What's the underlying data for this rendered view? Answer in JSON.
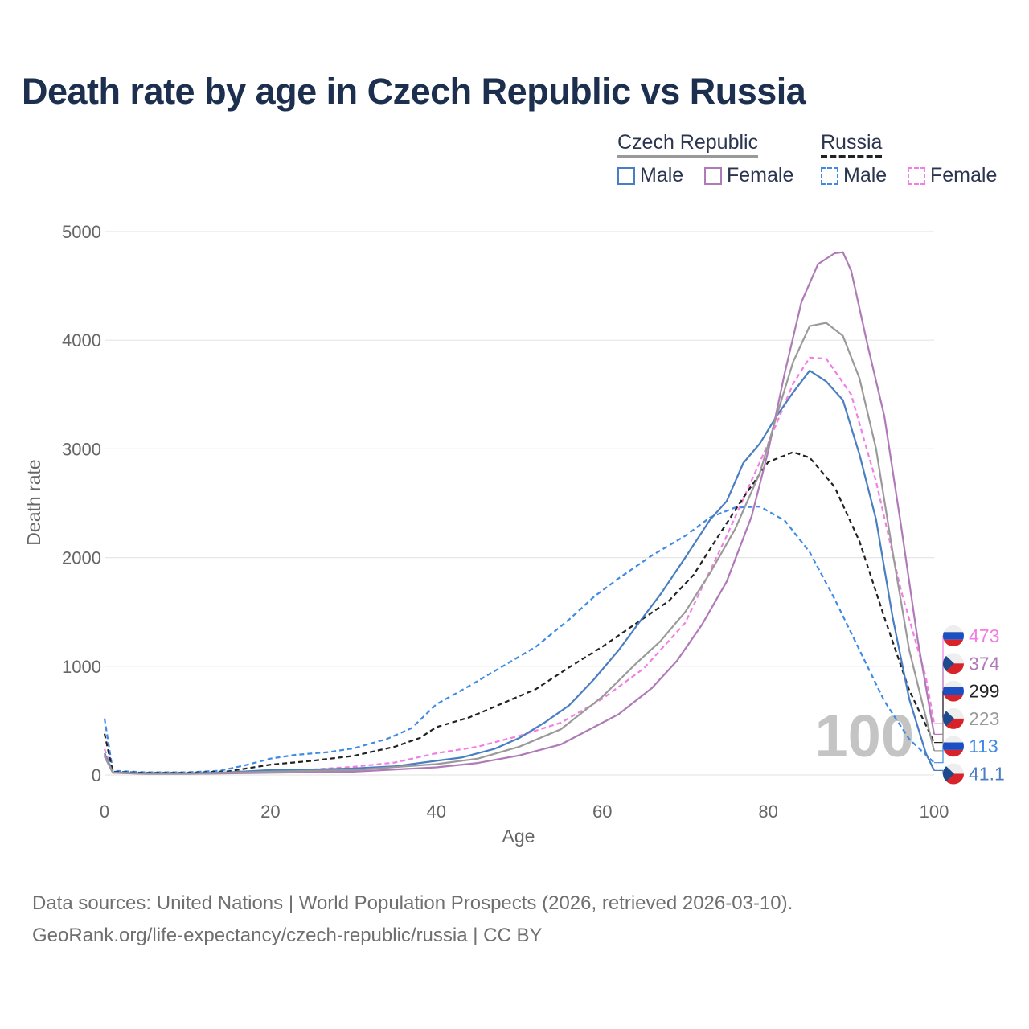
{
  "title": "Death rate by age in Czech Republic vs Russia",
  "legend": {
    "groups": [
      {
        "name": "Czech Republic",
        "line_color": "#999999",
        "line_style": "solid"
      },
      {
        "name": "Russia",
        "line_color": "#222222",
        "line_style": "dashed"
      }
    ],
    "items": [
      {
        "label": "Male",
        "color": "#4a7ec2",
        "style": "solid"
      },
      {
        "label": "Female",
        "color": "#b07ab8",
        "style": "solid"
      },
      {
        "label": "Male",
        "color": "#3f8ae6",
        "style": "dashed"
      },
      {
        "label": "Female",
        "color": "#f27ee4",
        "style": "dashed"
      }
    ]
  },
  "year_watermark": "100",
  "footer": {
    "line1": "Data sources: United Nations | World Population Prospects (2026, retrieved 2026-03-10).",
    "line2": "GeoRank.org/life-expectancy/czech-republic/russia | CC BY"
  },
  "chart_data": {
    "type": "line",
    "xlabel": "Age",
    "ylabel": "Death rate",
    "xlim": [
      0,
      100
    ],
    "ylim": [
      0,
      5000
    ],
    "xticks": [
      0,
      20,
      40,
      60,
      80,
      100
    ],
    "yticks": [
      0,
      1000,
      2000,
      3000,
      4000,
      5000
    ],
    "grid": true,
    "series": [
      {
        "name": "Russia Male",
        "country": "Russia",
        "sex": "Male",
        "color": "#3f8ae6",
        "dash": true,
        "end_label": "113",
        "end_flag": "russia",
        "points": [
          [
            0,
            520
          ],
          [
            1,
            40
          ],
          [
            5,
            25
          ],
          [
            10,
            25
          ],
          [
            14,
            40
          ],
          [
            17,
            90
          ],
          [
            20,
            150
          ],
          [
            23,
            185
          ],
          [
            27,
            210
          ],
          [
            30,
            245
          ],
          [
            34,
            330
          ],
          [
            37,
            430
          ],
          [
            40,
            650
          ],
          [
            44,
            820
          ],
          [
            48,
            1000
          ],
          [
            52,
            1180
          ],
          [
            56,
            1430
          ],
          [
            59,
            1640
          ],
          [
            62,
            1810
          ],
          [
            66,
            2020
          ],
          [
            70,
            2200
          ],
          [
            73,
            2370
          ],
          [
            76,
            2460
          ],
          [
            79,
            2470
          ],
          [
            82,
            2340
          ],
          [
            85,
            2050
          ],
          [
            88,
            1620
          ],
          [
            91,
            1150
          ],
          [
            94,
            680
          ],
          [
            97,
            330
          ],
          [
            100,
            113
          ]
        ]
      },
      {
        "name": "Russia Female",
        "country": "Russia",
        "sex": "Female",
        "color": "#f27ee4",
        "dash": true,
        "end_label": "473",
        "end_flag": "russia",
        "points": [
          [
            0,
            240
          ],
          [
            1,
            20
          ],
          [
            5,
            15
          ],
          [
            10,
            15
          ],
          [
            15,
            20
          ],
          [
            20,
            35
          ],
          [
            25,
            50
          ],
          [
            30,
            75
          ],
          [
            35,
            115
          ],
          [
            40,
            200
          ],
          [
            45,
            260
          ],
          [
            50,
            360
          ],
          [
            55,
            480
          ],
          [
            60,
            700
          ],
          [
            65,
            980
          ],
          [
            70,
            1400
          ],
          [
            75,
            2200
          ],
          [
            80,
            3050
          ],
          [
            83,
            3600
          ],
          [
            85,
            3840
          ],
          [
            87,
            3830
          ],
          [
            90,
            3500
          ],
          [
            93,
            2700
          ],
          [
            96,
            1700
          ],
          [
            99,
            900
          ],
          [
            100,
            473
          ]
        ]
      },
      {
        "name": "Russia Total",
        "country": "Russia",
        "sex": "Total",
        "color": "#222222",
        "dash": true,
        "end_label": "299",
        "end_flag": "russia",
        "points": [
          [
            0,
            380
          ],
          [
            1,
            30
          ],
          [
            5,
            20
          ],
          [
            10,
            20
          ],
          [
            15,
            35
          ],
          [
            20,
            95
          ],
          [
            25,
            130
          ],
          [
            30,
            175
          ],
          [
            35,
            260
          ],
          [
            38,
            340
          ],
          [
            40,
            440
          ],
          [
            44,
            530
          ],
          [
            48,
            660
          ],
          [
            52,
            790
          ],
          [
            56,
            990
          ],
          [
            60,
            1180
          ],
          [
            64,
            1390
          ],
          [
            68,
            1600
          ],
          [
            71,
            1840
          ],
          [
            74,
            2200
          ],
          [
            77,
            2550
          ],
          [
            80,
            2880
          ],
          [
            83,
            2970
          ],
          [
            85,
            2920
          ],
          [
            88,
            2650
          ],
          [
            91,
            2150
          ],
          [
            94,
            1450
          ],
          [
            97,
            780
          ],
          [
            100,
            299
          ]
        ]
      },
      {
        "name": "Czech Republic Male",
        "country": "Czech Republic",
        "sex": "Male",
        "color": "#4a7ec2",
        "dash": false,
        "end_label": "41.1",
        "end_flag": "czech",
        "points": [
          [
            0,
            200
          ],
          [
            1,
            25
          ],
          [
            5,
            15
          ],
          [
            10,
            15
          ],
          [
            15,
            25
          ],
          [
            20,
            45
          ],
          [
            25,
            50
          ],
          [
            30,
            60
          ],
          [
            35,
            80
          ],
          [
            40,
            130
          ],
          [
            43,
            160
          ],
          [
            47,
            240
          ],
          [
            50,
            340
          ],
          [
            53,
            480
          ],
          [
            56,
            640
          ],
          [
            59,
            880
          ],
          [
            62,
            1150
          ],
          [
            65,
            1460
          ],
          [
            67,
            1660
          ],
          [
            70,
            2000
          ],
          [
            73,
            2350
          ],
          [
            75,
            2520
          ],
          [
            77,
            2870
          ],
          [
            79,
            3050
          ],
          [
            81,
            3300
          ],
          [
            83,
            3520
          ],
          [
            85,
            3720
          ],
          [
            87,
            3620
          ],
          [
            89,
            3450
          ],
          [
            91,
            2950
          ],
          [
            93,
            2350
          ],
          [
            95,
            1450
          ],
          [
            97,
            700
          ],
          [
            99,
            200
          ],
          [
            100,
            41.1
          ]
        ]
      },
      {
        "name": "Czech Republic Female",
        "country": "Czech Republic",
        "sex": "Female",
        "color": "#b07ab8",
        "dash": false,
        "end_label": "374",
        "end_flag": "czech",
        "points": [
          [
            0,
            170
          ],
          [
            1,
            20
          ],
          [
            5,
            10
          ],
          [
            10,
            10
          ],
          [
            20,
            20
          ],
          [
            30,
            30
          ],
          [
            40,
            70
          ],
          [
            45,
            110
          ],
          [
            50,
            180
          ],
          [
            55,
            280
          ],
          [
            58,
            400
          ],
          [
            62,
            560
          ],
          [
            66,
            800
          ],
          [
            69,
            1050
          ],
          [
            72,
            1380
          ],
          [
            75,
            1780
          ],
          [
            78,
            2380
          ],
          [
            80,
            2980
          ],
          [
            82,
            3700
          ],
          [
            84,
            4350
          ],
          [
            86,
            4700
          ],
          [
            88,
            4800
          ],
          [
            89,
            4810
          ],
          [
            90,
            4640
          ],
          [
            92,
            3950
          ],
          [
            94,
            3300
          ],
          [
            96,
            2300
          ],
          [
            98,
            1250
          ],
          [
            100,
            374
          ]
        ]
      },
      {
        "name": "Czech Republic Total",
        "country": "Czech Republic",
        "sex": "Total",
        "color": "#9a9a9a",
        "dash": false,
        "end_label": "223",
        "end_flag": "czech",
        "points": [
          [
            0,
            185
          ],
          [
            1,
            22
          ],
          [
            5,
            12
          ],
          [
            10,
            12
          ],
          [
            20,
            30
          ],
          [
            30,
            45
          ],
          [
            40,
            100
          ],
          [
            45,
            150
          ],
          [
            50,
            260
          ],
          [
            55,
            420
          ],
          [
            60,
            720
          ],
          [
            64,
            1020
          ],
          [
            67,
            1230
          ],
          [
            70,
            1500
          ],
          [
            73,
            1860
          ],
          [
            76,
            2260
          ],
          [
            79,
            2780
          ],
          [
            81,
            3300
          ],
          [
            83,
            3800
          ],
          [
            85,
            4130
          ],
          [
            87,
            4160
          ],
          [
            89,
            4040
          ],
          [
            91,
            3650
          ],
          [
            93,
            3000
          ],
          [
            95,
            2050
          ],
          [
            97,
            1150
          ],
          [
            100,
            223
          ]
        ]
      }
    ]
  }
}
